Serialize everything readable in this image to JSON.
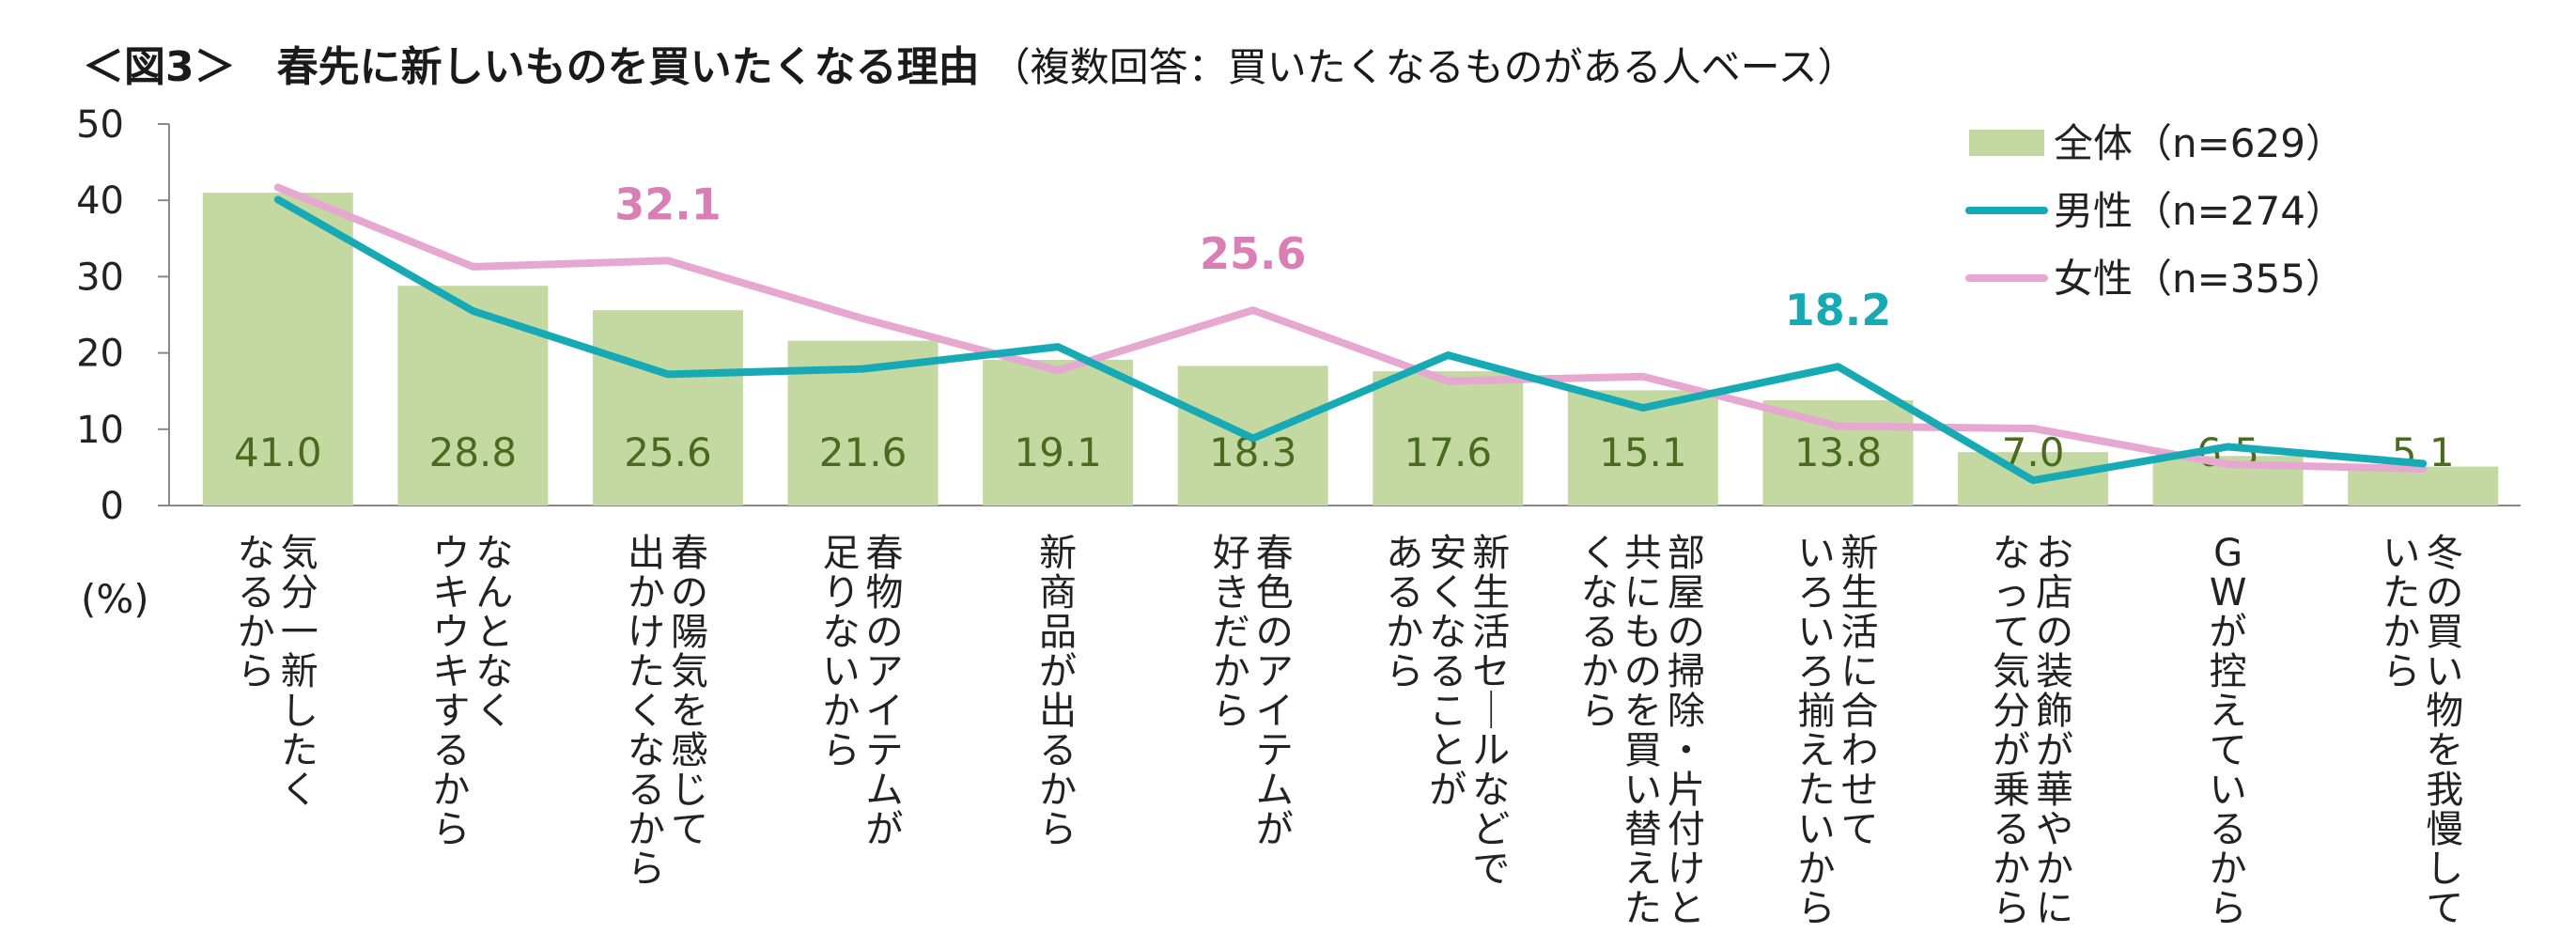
{
  "title": {
    "main": "＜図3＞　春先に新しいものを買いたくなる理由",
    "note": "（複数回答：買いたくなるものがある人ベース）"
  },
  "chart_data": {
    "type": "bar",
    "ylim": [
      0,
      50
    ],
    "yticks": [
      "0",
      "10",
      "20",
      "30",
      "40",
      "50"
    ],
    "ylabel": "(%)",
    "categories": [
      [
        "気分一新したく",
        "なるから"
      ],
      [
        "なんとなく",
        "ウキウキするから"
      ],
      [
        "春の陽気を感じて",
        "出かけたくなるから"
      ],
      [
        "春物のアイテムが",
        "足りないから"
      ],
      [
        "新商品が出るから"
      ],
      [
        "春色のアイテムが",
        "好きだから"
      ],
      [
        "新生活セールなどで",
        "安くなることが",
        "あるから"
      ],
      [
        "部屋の掃除・片付けと",
        "共にものを買い替えた",
        "くなるから"
      ],
      [
        "新生活に合わせて",
        "いろいろ揃えたいから"
      ],
      [
        "お店の装飾が華やかに",
        "なって気分が乗るから"
      ],
      [
        "GWが控えているから"
      ],
      [
        "冬の買い物を我慢して",
        "いたから"
      ]
    ],
    "series": [
      {
        "name": "全体（n=629）",
        "kind": "bar",
        "color": "#c4d9a2",
        "values": [
          41.0,
          28.8,
          25.6,
          21.6,
          19.1,
          18.3,
          17.6,
          15.1,
          13.8,
          7.0,
          6.5,
          5.1
        ],
        "labels": [
          "41.0",
          "28.8",
          "25.6",
          "21.6",
          "19.1",
          "18.3",
          "17.6",
          "15.1",
          "13.8",
          "7.0",
          "6.5",
          "5.1"
        ],
        "label_color": "#4a6b1f"
      },
      {
        "name": "男性（n=274）",
        "kind": "line",
        "color": "#17aab5",
        "values": [
          40.1,
          25.5,
          17.2,
          17.9,
          20.8,
          8.8,
          19.7,
          12.8,
          18.2,
          3.3,
          7.7,
          5.5
        ]
      },
      {
        "name": "女性（n=355）",
        "kind": "line",
        "color": "#e6a8d0",
        "values": [
          41.7,
          31.3,
          32.1,
          24.5,
          17.7,
          25.6,
          16.3,
          16.9,
          10.4,
          10.1,
          5.4,
          4.8
        ]
      }
    ],
    "annotations": [
      {
        "text": "32.1",
        "series": 2,
        "index": 2,
        "color": "#d97fb6"
      },
      {
        "text": "25.6",
        "series": 2,
        "index": 5,
        "color": "#d97fb6"
      },
      {
        "text": "18.2",
        "series": 1,
        "index": 8,
        "color": "#17aab5"
      }
    ],
    "legend": "top-right"
  }
}
